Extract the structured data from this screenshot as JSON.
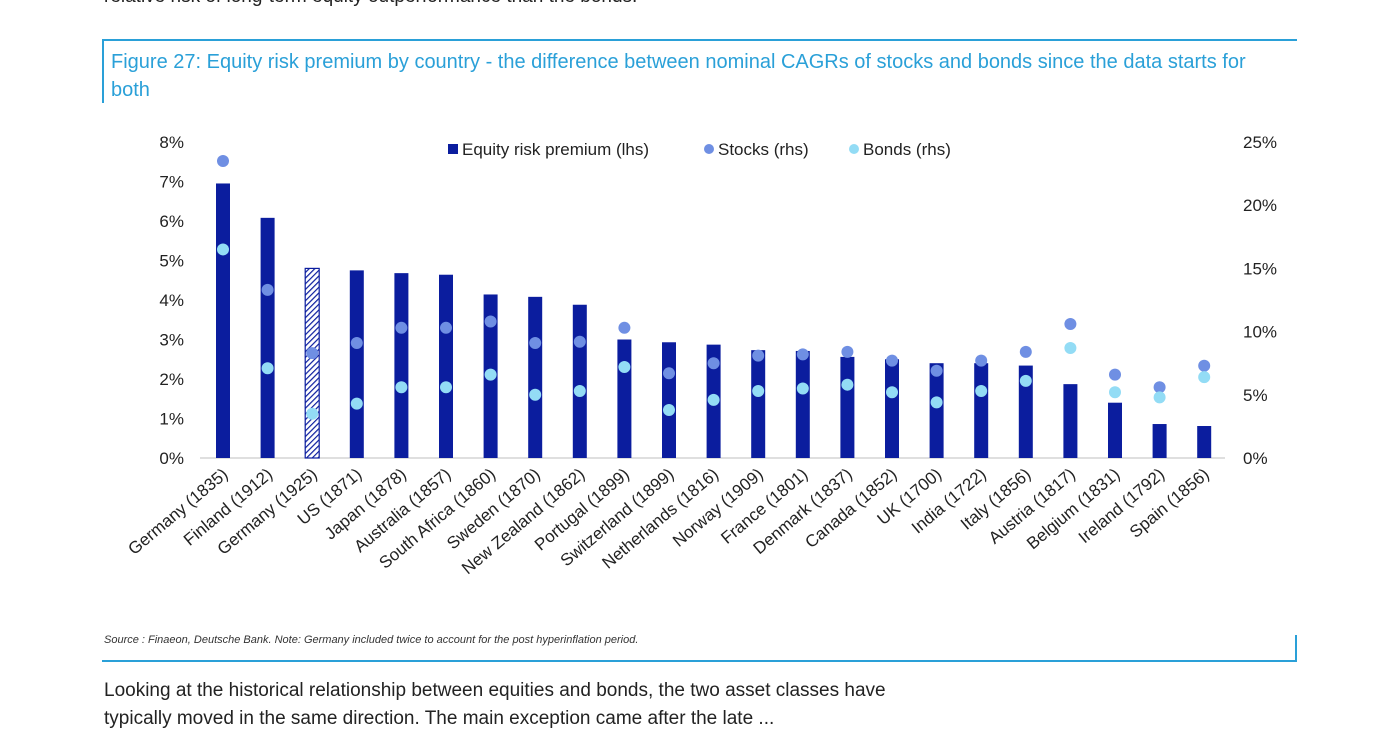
{
  "header_text": "relative risk of long-term equity outperformance than the bonds.",
  "figure_title": "Figure 27: Equity risk premium by country - the difference between nominal CAGRs of stocks and bonds since the data starts for both",
  "source_note": "Source : Finaeon, Deutsche Bank. Note: Germany included twice to account for the post hyperinflation period.",
  "body_text": "Looking at the historical relationship between equities and bonds, the two asset classes have typically moved in the same direction. The main exception came after the late ... ",
  "colors": {
    "premium": "#0b1d9e",
    "stocks": "#6f8fe3",
    "bonds": "#93dcf5",
    "accent": "#2aa0d8"
  },
  "chart_data": {
    "type": "bar",
    "title": "",
    "left_axis": {
      "range": [
        0,
        8
      ],
      "ticks": [
        "0%",
        "1%",
        "2%",
        "3%",
        "4%",
        "5%",
        "6%",
        "7%",
        "8%"
      ]
    },
    "right_axis": {
      "range": [
        0,
        25
      ],
      "ticks": [
        "0%",
        "5%",
        "10%",
        "15%",
        "20%",
        "25%"
      ]
    },
    "legend": {
      "position": "top-center"
    },
    "grid": false,
    "categories": [
      "Germany (1835)",
      "Finland (1912)",
      "Germany (1925)",
      "US (1871)",
      "Japan (1878)",
      "Australia (1857)",
      "South Africa (1860)",
      "Sweden (1870)",
      "New Zealand (1862)",
      "Portugal (1899)",
      "Switzerland (1899)",
      "Netherlands (1816)",
      "Norway (1909)",
      "France (1801)",
      "Denmark (1837)",
      "Canada (1852)",
      "UK (1700)",
      "India (1722)",
      "Italy (1856)",
      "Austria (1817)",
      "Belgium (1831)",
      "Ireland (1792)",
      "Spain (1856)"
    ],
    "highlight_index": 2,
    "series": [
      {
        "name": "Equity risk premium (lhs)",
        "axis": "left",
        "kind": "bar",
        "values": [
          6.95,
          6.08,
          4.8,
          4.75,
          4.68,
          4.64,
          4.14,
          4.08,
          3.88,
          3.0,
          2.93,
          2.87,
          2.73,
          2.71,
          2.56,
          2.5,
          2.4,
          2.4,
          2.34,
          1.87,
          1.4,
          0.86,
          0.81
        ]
      },
      {
        "name": "Stocks (rhs)",
        "axis": "right",
        "kind": "marker",
        "values": [
          23.5,
          13.3,
          8.3,
          9.1,
          10.3,
          10.3,
          10.8,
          9.1,
          9.2,
          10.3,
          6.7,
          7.5,
          8.1,
          8.2,
          8.4,
          7.7,
          6.9,
          7.7,
          8.4,
          10.6,
          6.6,
          5.6,
          7.3
        ]
      },
      {
        "name": "Bonds (rhs)",
        "axis": "right",
        "kind": "marker",
        "values": [
          16.5,
          7.1,
          3.5,
          4.3,
          5.6,
          5.6,
          6.6,
          5.0,
          5.3,
          7.2,
          3.8,
          4.6,
          5.3,
          5.5,
          5.8,
          5.2,
          4.4,
          5.3,
          6.1,
          8.7,
          5.2,
          4.8,
          6.4
        ]
      }
    ]
  }
}
